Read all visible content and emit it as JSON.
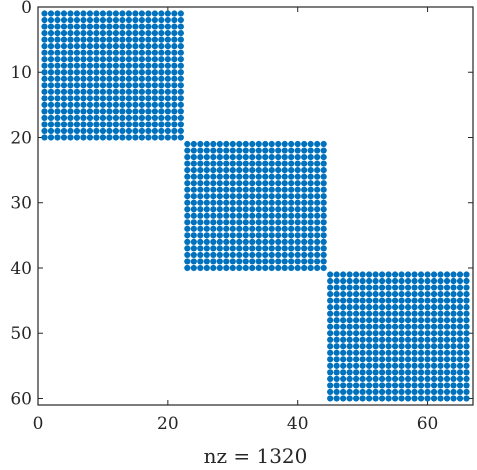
{
  "chart_data": {
    "type": "scatter",
    "subtype": "sparsity-pattern",
    "title": "",
    "xlabel": "nz = 1320",
    "ylabel": "",
    "xlim": [
      0,
      67
    ],
    "ylim": [
      61,
      0
    ],
    "y_axis_reversed": true,
    "xticks": [
      0,
      20,
      40,
      60
    ],
    "yticks": [
      0,
      10,
      20,
      30,
      40,
      50,
      60
    ],
    "grid": false,
    "marker_color": "#0072BD",
    "blocks": [
      {
        "rows": [
          1,
          20
        ],
        "cols": [
          1,
          22
        ]
      },
      {
        "rows": [
          21,
          40
        ],
        "cols": [
          23,
          44
        ]
      },
      {
        "rows": [
          41,
          60
        ],
        "cols": [
          45,
          66
        ]
      }
    ]
  }
}
